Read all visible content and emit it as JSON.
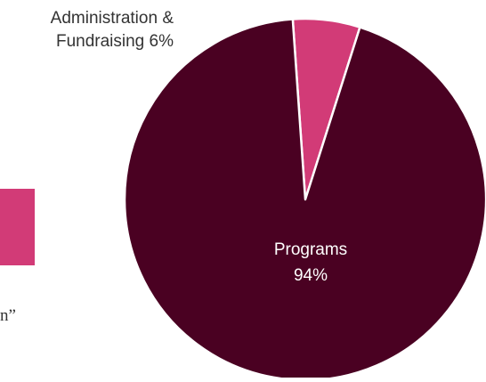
{
  "colors": {
    "programs": "#4a0122",
    "administration": "#d23b77",
    "separator": "#ffffff",
    "label_dark": "#333333",
    "label_light": "#ffffff"
  },
  "left_fragment": {
    "text": "n”"
  },
  "chart_data": {
    "type": "pie",
    "title": "",
    "slices": [
      {
        "name": "Administration & Fundraising",
        "value": 6,
        "label_lines": [
          "Administration &",
          "Fundraising 6%"
        ],
        "color": "#d23b77"
      },
      {
        "name": "Programs",
        "value": 94,
        "label_lines": [
          "Programs",
          "94%"
        ],
        "color": "#4a0122"
      }
    ],
    "start_angle_deg": -4,
    "legend": "none"
  }
}
